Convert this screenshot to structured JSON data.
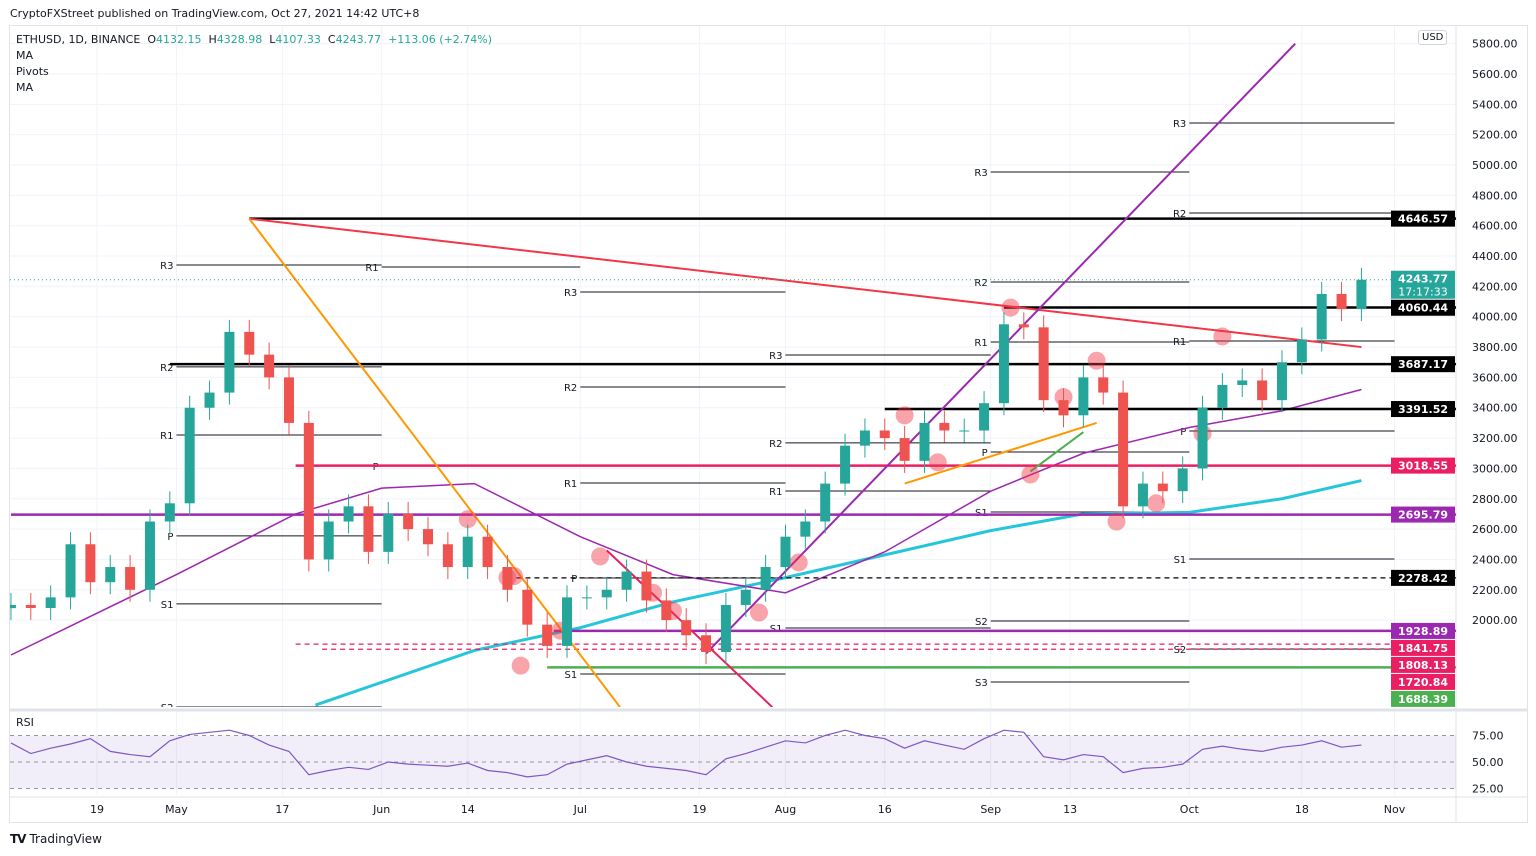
{
  "header": {
    "published": "CryptoFXStreet published on TradingView.com, Oct 27, 2021 14:42 UTC+8",
    "symbol": "ETHUSD, 1D, BINANCE",
    "o_label": "O",
    "o": "4132.15",
    "h_label": "H",
    "h": "4328.98",
    "l_label": "L",
    "l": "4107.33",
    "c_label": "C",
    "c": "4243.77",
    "change": "+113.06 (+2.74%)",
    "indicators": [
      "MA",
      "Pivots",
      "MA"
    ],
    "currency": "USD"
  },
  "footer": {
    "brand": "TradingView"
  },
  "chart_data": {
    "type": "candlestick",
    "symbol": "ETHUSD",
    "interval": "1D",
    "exchange": "BINANCE",
    "ylim": [
      1427,
      5800
    ],
    "yticks": [
      5800,
      5600,
      5400,
      5200,
      5000,
      4800,
      4600,
      4400,
      4200,
      4000,
      3800,
      3600,
      3400,
      3200,
      3000,
      2800,
      2600,
      2400,
      2200,
      2000
    ],
    "xticks": [
      [
        "2021-04-19",
        "19"
      ],
      [
        "2021-05-01",
        "May"
      ],
      [
        "2021-05-17",
        "17"
      ],
      [
        "2021-06-01",
        "Jun"
      ],
      [
        "2021-06-14",
        "14"
      ],
      [
        "2021-07-01",
        "Jul"
      ],
      [
        "2021-07-19",
        "19"
      ],
      [
        "2021-08-01",
        "Aug"
      ],
      [
        "2021-08-16",
        "16"
      ],
      [
        "2021-09-01",
        "Sep"
      ],
      [
        "2021-09-13",
        "13"
      ],
      [
        "2021-10-01",
        "Oct"
      ],
      [
        "2021-10-18",
        "18"
      ],
      [
        "2021-11-01",
        "Nov"
      ]
    ],
    "colors": {
      "up": "#26a69a",
      "down": "#ef5350",
      "ma_fast": "#9c27b0",
      "ma_slow": "#26c6da"
    },
    "closes": [
      [
        "2021-04-06",
        2100
      ],
      [
        "2021-04-09",
        2080
      ],
      [
        "2021-04-12",
        2150
      ],
      [
        "2021-04-15",
        2500
      ],
      [
        "2021-04-18",
        2250
      ],
      [
        "2021-04-21",
        2350
      ],
      [
        "2021-04-24",
        2200
      ],
      [
        "2021-04-27",
        2650
      ],
      [
        "2021-04-30",
        2770
      ],
      [
        "2021-05-03",
        3400
      ],
      [
        "2021-05-06",
        3500
      ],
      [
        "2021-05-09",
        3900
      ],
      [
        "2021-05-12",
        3750
      ],
      [
        "2021-05-15",
        3600
      ],
      [
        "2021-05-18",
        3300
      ],
      [
        "2021-05-21",
        2400
      ],
      [
        "2021-05-24",
        2650
      ],
      [
        "2021-05-27",
        2750
      ],
      [
        "2021-05-30",
        2450
      ],
      [
        "2021-06-02",
        2700
      ],
      [
        "2021-06-05",
        2600
      ],
      [
        "2021-06-08",
        2500
      ],
      [
        "2021-06-11",
        2350
      ],
      [
        "2021-06-14",
        2550
      ],
      [
        "2021-06-17",
        2350
      ],
      [
        "2021-06-20",
        2200
      ],
      [
        "2021-06-23",
        1970
      ],
      [
        "2021-06-26",
        1830
      ],
      [
        "2021-06-29",
        2150
      ],
      [
        "2021-07-02",
        2150
      ],
      [
        "2021-07-05",
        2200
      ],
      [
        "2021-07-08",
        2320
      ],
      [
        "2021-07-11",
        2130
      ],
      [
        "2021-07-14",
        2000
      ],
      [
        "2021-07-17",
        1900
      ],
      [
        "2021-07-20",
        1790
      ],
      [
        "2021-07-23",
        2100
      ],
      [
        "2021-07-26",
        2200
      ],
      [
        "2021-07-29",
        2350
      ],
      [
        "2021-08-01",
        2550
      ],
      [
        "2021-08-04",
        2650
      ],
      [
        "2021-08-07",
        2900
      ],
      [
        "2021-08-10",
        3150
      ],
      [
        "2021-08-13",
        3250
      ],
      [
        "2021-08-16",
        3200
      ],
      [
        "2021-08-19",
        3050
      ],
      [
        "2021-08-22",
        3300
      ],
      [
        "2021-08-25",
        3250
      ],
      [
        "2021-08-28",
        3250
      ],
      [
        "2021-08-31",
        3430
      ],
      [
        "2021-09-03",
        3950
      ],
      [
        "2021-09-06",
        3930
      ],
      [
        "2021-09-09",
        3450
      ],
      [
        "2021-09-12",
        3350
      ],
      [
        "2021-09-15",
        3600
      ],
      [
        "2021-09-18",
        3500
      ],
      [
        "2021-09-21",
        2750
      ],
      [
        "2021-09-24",
        2900
      ],
      [
        "2021-09-27",
        2850
      ],
      [
        "2021-09-30",
        3000
      ],
      [
        "2021-10-03",
        3400
      ],
      [
        "2021-10-06",
        3550
      ],
      [
        "2021-10-09",
        3580
      ],
      [
        "2021-10-12",
        3450
      ],
      [
        "2021-10-15",
        3700
      ],
      [
        "2021-10-18",
        3850
      ],
      [
        "2021-10-21",
        4150
      ],
      [
        "2021-10-24",
        4050
      ],
      [
        "2021-10-27",
        4243.77
      ]
    ],
    "last_price": {
      "value": 4243.77,
      "label": "4243.77",
      "countdown": "17:17:33",
      "color": "#26a69a"
    },
    "ma_fast": [
      [
        "2021-04-06",
        1770
      ],
      [
        "2021-05-01",
        2300
      ],
      [
        "2021-05-19",
        2700
      ],
      [
        "2021-06-01",
        2870
      ],
      [
        "2021-06-15",
        2900
      ],
      [
        "2021-07-01",
        2550
      ],
      [
        "2021-07-15",
        2300
      ],
      [
        "2021-08-01",
        2180
      ],
      [
        "2021-08-16",
        2450
      ],
      [
        "2021-09-01",
        2850
      ],
      [
        "2021-09-15",
        3100
      ],
      [
        "2021-10-01",
        3270
      ],
      [
        "2021-10-15",
        3380
      ],
      [
        "2021-10-27",
        3520
      ]
    ],
    "ma_slow": [
      [
        "2021-05-22",
        1440
      ],
      [
        "2021-06-15",
        1800
      ],
      [
        "2021-07-01",
        1950
      ],
      [
        "2021-07-15",
        2120
      ],
      [
        "2021-08-01",
        2280
      ],
      [
        "2021-08-16",
        2430
      ],
      [
        "2021-09-01",
        2590
      ],
      [
        "2021-09-15",
        2700
      ],
      [
        "2021-10-01",
        2710
      ],
      [
        "2021-10-15",
        2800
      ],
      [
        "2021-10-27",
        2920
      ]
    ],
    "levels": [
      {
        "value": 4646.57,
        "label": "4646.57",
        "from": "2021-05-12",
        "color": "#000000",
        "style": "solid"
      },
      {
        "value": 4060.44,
        "label": "4060.44",
        "from": "2021-09-03",
        "color": "#000000",
        "style": "solid"
      },
      {
        "value": 3687.17,
        "label": "3687.17",
        "from": "2021-04-30",
        "color": "#000000",
        "style": "solid"
      },
      {
        "value": 3391.52,
        "label": "3391.52",
        "from": "2021-08-16",
        "color": "#000000",
        "style": "solid"
      },
      {
        "value": 3018.55,
        "label": "3018.55",
        "from": "2021-05-19",
        "color": "#e91e63",
        "style": "solid"
      },
      {
        "value": 2695.79,
        "label": "2695.79",
        "from": "2021-04-06",
        "color": "#9c27b0",
        "style": "solid"
      },
      {
        "value": 2278.42,
        "label": "2278.42",
        "from": "2021-06-20",
        "color": "#000000",
        "style": "dashed"
      },
      {
        "value": 1928.89,
        "label": "1928.89",
        "from": "2021-06-27",
        "color": "#9c27b0",
        "style": "solid"
      },
      {
        "value": 1841.75,
        "label": "1841.75",
        "from": "2021-05-19",
        "color": "#e91e63",
        "style": "dashed"
      },
      {
        "value": 1808.13,
        "label": "1808.13",
        "from": "2021-05-23",
        "color": "#e91e63",
        "style": "dashed"
      },
      {
        "value": 1720.84,
        "label": "1720.84",
        "from": null,
        "color": "#e91e63",
        "style": "none"
      },
      {
        "value": 1688.39,
        "label": "1688.39",
        "from": "2021-06-26",
        "color": "#4caf50",
        "style": "solid"
      }
    ],
    "trendlines": [
      {
        "from": [
          "2021-05-12",
          4646
        ],
        "to": [
          "2021-10-27",
          3800
        ],
        "color": "#f23645"
      },
      {
        "from": [
          "2021-05-12",
          4646
        ],
        "to": [
          "2021-07-07",
          1427
        ],
        "color": "#ff9800"
      },
      {
        "from": [
          "2021-07-20",
          1780
        ],
        "to": [
          "2021-10-17",
          5800
        ],
        "color": "#9c27b0"
      },
      {
        "from": [
          "2021-07-05",
          2460
        ],
        "to": [
          "2021-07-30",
          1427
        ],
        "color": "#e91e63"
      },
      {
        "from": [
          "2021-08-19",
          2900
        ],
        "to": [
          "2021-09-17",
          3300
        ],
        "color": "#ff9800"
      },
      {
        "from": [
          "2021-09-07",
          2980
        ],
        "to": [
          "2021-09-15",
          3240
        ],
        "color": "#4caf50"
      }
    ],
    "pivots": [
      {
        "from": "2021-05-01",
        "to": "2021-06-01",
        "items": [
          [
            "R3",
            4341
          ],
          [
            "R2",
            3669
          ],
          [
            "R1",
            3220
          ],
          [
            "P",
            2555
          ],
          [
            "S1",
            2107
          ],
          [
            "S2",
            1427
          ]
        ]
      },
      {
        "from": "2021-06-01",
        "to": "2021-07-01",
        "items": [
          [
            "R1",
            4328
          ],
          [
            "P",
            3016
          ]
        ]
      },
      {
        "from": "2021-07-01",
        "to": "2021-08-01",
        "items": [
          [
            "R3",
            4163
          ],
          [
            "R2",
            3537
          ],
          [
            "R1",
            2904
          ],
          [
            "P",
            2278
          ],
          [
            "S1",
            1645
          ]
        ]
      },
      {
        "from": "2021-08-01",
        "to": "2021-09-01",
        "items": [
          [
            "R3",
            3748
          ],
          [
            "R2",
            3168
          ],
          [
            "R1",
            2851
          ],
          [
            "S1",
            1948
          ]
        ]
      },
      {
        "from": "2021-09-01",
        "to": "2021-10-01",
        "items": [
          [
            "R3",
            4954
          ],
          [
            "R2",
            4229
          ],
          [
            "R1",
            3833
          ],
          [
            "P",
            3108
          ],
          [
            "S1",
            2713
          ],
          [
            "S2",
            1994
          ],
          [
            "S3",
            1592
          ]
        ]
      },
      {
        "from": "2021-10-01",
        "to": "2021-11-01",
        "items": [
          [
            "R3",
            5277
          ],
          [
            "R2",
            4684
          ],
          [
            "R1",
            3840
          ],
          [
            "P",
            3247
          ],
          [
            "S1",
            2403
          ],
          [
            "S2",
            1810
          ]
        ]
      }
    ],
    "markers": [
      [
        "2021-06-14",
        2665
      ],
      [
        "2021-06-20",
        2280
      ],
      [
        "2021-06-21",
        2290
      ],
      [
        "2021-06-22",
        1700
      ],
      [
        "2021-06-28",
        1930
      ],
      [
        "2021-07-04",
        2420
      ],
      [
        "2021-07-12",
        2180
      ],
      [
        "2021-07-15",
        2060
      ],
      [
        "2021-07-28",
        2050
      ],
      [
        "2021-08-03",
        2380
      ],
      [
        "2021-08-19",
        3350
      ],
      [
        "2021-08-24",
        3040
      ],
      [
        "2021-09-04",
        4060
      ],
      [
        "2021-09-07",
        2960
      ],
      [
        "2021-09-12",
        3470
      ],
      [
        "2021-09-17",
        3710
      ],
      [
        "2021-09-20",
        2650
      ],
      [
        "2021-09-26",
        2770
      ],
      [
        "2021-10-03",
        3230
      ],
      [
        "2021-10-06",
        3870
      ]
    ],
    "rsi": {
      "label": "RSI",
      "levels": [
        75,
        50,
        25
      ],
      "yticks": [
        "75.00",
        "50.00",
        "25.00"
      ],
      "color": "#7e57c2",
      "values": [
        68,
        58,
        63,
        67,
        72,
        60,
        57,
        55,
        70,
        76,
        78,
        80,
        75,
        66,
        60,
        38,
        42,
        45,
        43,
        50,
        48,
        47,
        46,
        49,
        42,
        40,
        36,
        38,
        48,
        52,
        56,
        50,
        46,
        44,
        42,
        38,
        53,
        58,
        64,
        70,
        68,
        75,
        80,
        75,
        72,
        63,
        70,
        66,
        62,
        72,
        80,
        78,
        55,
        52,
        57,
        55,
        40,
        44,
        45,
        48,
        62,
        65,
        62,
        60,
        64,
        66,
        70,
        64,
        66
      ]
    }
  }
}
